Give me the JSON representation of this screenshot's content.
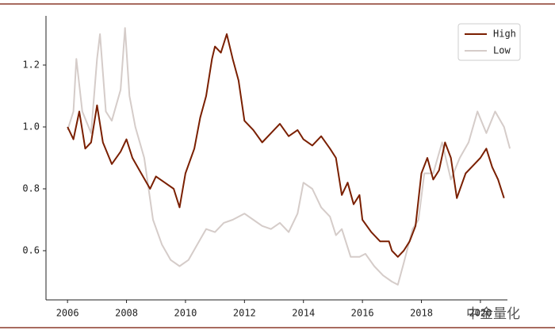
{
  "chart_data": {
    "type": "line",
    "watermark": "中金量化",
    "legend": "upper right",
    "grid": false,
    "xlim": [
      2005.27,
      2021.4
    ],
    "ylim": [
      0.441,
      1.359
    ],
    "xticks": [
      2006,
      2008,
      2010,
      2012,
      2014,
      2016,
      2018,
      2020
    ],
    "yticks": [
      0.6,
      0.8,
      {
        "value": 1,
        "label": "1.0"
      },
      1.2
    ],
    "series": [
      {
        "name": "High",
        "color": "#7a1f00",
        "x": [
          2006.0,
          2006.2,
          2006.4,
          2006.6,
          2006.8,
          2007.0,
          2007.2,
          2007.5,
          2007.8,
          2008.0,
          2008.2,
          2008.5,
          2008.8,
          2009.0,
          2009.3,
          2009.6,
          2009.8,
          2010.0,
          2010.3,
          2010.5,
          2010.7,
          2010.9,
          2011.0,
          2011.2,
          2011.4,
          2011.6,
          2011.8,
          2012.0,
          2012.3,
          2012.6,
          2012.9,
          2013.2,
          2013.5,
          2013.8,
          2014.0,
          2014.3,
          2014.6,
          2014.9,
          2015.1,
          2015.3,
          2015.5,
          2015.7,
          2015.9,
          2016.0,
          2016.3,
          2016.6,
          2016.9,
          2017.0,
          2017.2,
          2017.4,
          2017.6,
          2017.8,
          2018.0,
          2018.2,
          2018.4,
          2018.6,
          2018.8,
          2019.0,
          2019.2,
          2019.5,
          2019.8,
          2020.0,
          2020.2,
          2020.4,
          2020.6,
          2020.8
        ],
        "values": [
          1.0,
          0.96,
          1.05,
          0.93,
          0.95,
          1.07,
          0.95,
          0.88,
          0.92,
          0.96,
          0.9,
          0.85,
          0.8,
          0.84,
          0.82,
          0.8,
          0.74,
          0.85,
          0.93,
          1.03,
          1.1,
          1.22,
          1.26,
          1.24,
          1.3,
          1.22,
          1.15,
          1.02,
          0.99,
          0.95,
          0.98,
          1.01,
          0.97,
          0.99,
          0.96,
          0.94,
          0.97,
          0.93,
          0.9,
          0.78,
          0.82,
          0.75,
          0.78,
          0.7,
          0.66,
          0.63,
          0.63,
          0.6,
          0.58,
          0.6,
          0.63,
          0.68,
          0.85,
          0.9,
          0.83,
          0.86,
          0.95,
          0.9,
          0.77,
          0.85,
          0.88,
          0.9,
          0.93,
          0.87,
          0.83,
          0.77
        ]
      },
      {
        "name": "Low",
        "color": "#d5ccc9",
        "x": [
          2006.0,
          2006.2,
          2006.3,
          2006.5,
          2006.8,
          2007.0,
          2007.1,
          2007.3,
          2007.5,
          2007.8,
          2007.95,
          2008.1,
          2008.3,
          2008.6,
          2008.9,
          2009.2,
          2009.5,
          2009.8,
          2010.1,
          2010.4,
          2010.7,
          2011.0,
          2011.3,
          2011.6,
          2012.0,
          2012.3,
          2012.6,
          2012.9,
          2013.2,
          2013.5,
          2013.8,
          2014.0,
          2014.3,
          2014.6,
          2014.9,
          2015.1,
          2015.3,
          2015.6,
          2015.9,
          2016.1,
          2016.4,
          2016.7,
          2017.0,
          2017.2,
          2017.4,
          2017.7,
          2017.9,
          2018.1,
          2018.4,
          2018.7,
          2019.0,
          2019.3,
          2019.6,
          2019.9,
          2020.2,
          2020.5,
          2020.8,
          2021.0
        ],
        "values": [
          0.99,
          1.05,
          1.22,
          1.05,
          0.98,
          1.22,
          1.3,
          1.05,
          1.02,
          1.12,
          1.32,
          1.1,
          1.0,
          0.9,
          0.7,
          0.62,
          0.57,
          0.55,
          0.57,
          0.62,
          0.67,
          0.66,
          0.69,
          0.7,
          0.72,
          0.7,
          0.68,
          0.67,
          0.69,
          0.66,
          0.72,
          0.82,
          0.8,
          0.74,
          0.71,
          0.65,
          0.67,
          0.58,
          0.58,
          0.59,
          0.55,
          0.52,
          0.5,
          0.49,
          0.56,
          0.67,
          0.7,
          0.85,
          0.85,
          0.95,
          0.83,
          0.9,
          0.95,
          1.05,
          0.98,
          1.05,
          1.0,
          0.93
        ]
      }
    ]
  }
}
